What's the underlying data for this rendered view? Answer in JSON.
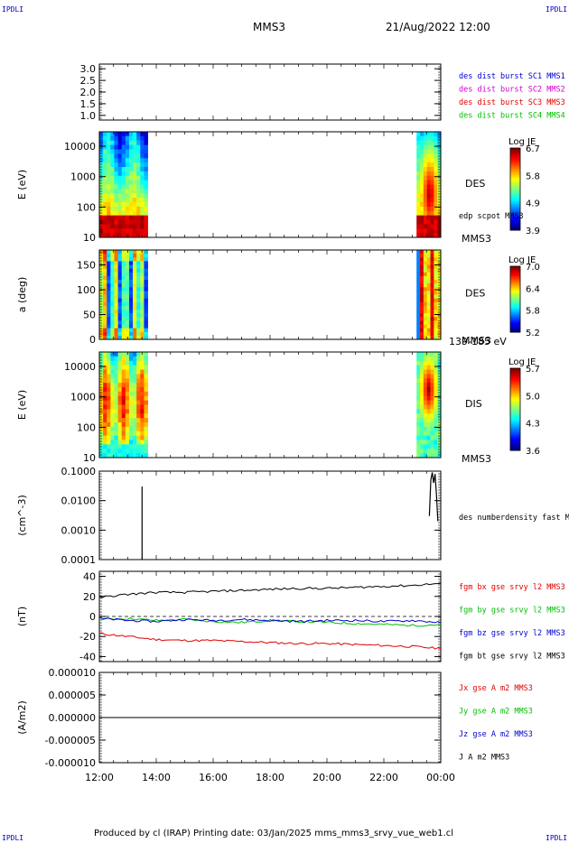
{
  "header": {
    "corner_tl": "IPDLI",
    "corner_tr": "IPDLI",
    "corner_bl": "IPDLI",
    "corner_br": "IPDLI",
    "spacecraft": "MMS3",
    "datetime": "21/Aug/2022 12:00"
  },
  "footer": {
    "text": "Produced by cl (IRAP)   Printing date: 03/Jan/2025   mms_mms3_srvy_vue_web1.cl"
  },
  "colors": {
    "blue": "#0000d0",
    "magenta": "#d000d0",
    "red": "#e00000",
    "green": "#00c000",
    "black": "#000000"
  },
  "chart_data": [
    {
      "type": "line",
      "panel": "sc-flags",
      "ylabel": "",
      "yticks": [
        "3.0",
        "2.5",
        "2.0",
        "1.5",
        "1.0"
      ],
      "ylim": [
        0.8,
        3.2
      ],
      "legend": [
        {
          "text": "des dist burst SC1 MMS1",
          "color": "blue"
        },
        {
          "text": "des dist burst SC2 MMS2",
          "color": "magenta"
        },
        {
          "text": "des dist burst SC3 MMS3",
          "color": "red"
        },
        {
          "text": "des dist burst SC4 MMS4",
          "color": "green"
        }
      ]
    },
    {
      "type": "heatmap",
      "panel": "des-energy",
      "ylabel": "E (eV)",
      "yscale": "log",
      "yticks": [
        "10000",
        "1000",
        "100",
        "10"
      ],
      "ylim": [
        10,
        30000
      ],
      "data_intervals_hours": [
        [
          12.0,
          13.7
        ],
        [
          23.15,
          24.0
        ]
      ],
      "label": "DES",
      "sublabel": "edp scpot MMS3",
      "spacecraft_label": "MMS3",
      "colorbar": {
        "title": "Log JE",
        "ticks": [
          "6.7",
          "5.8",
          "4.9",
          "3.9"
        ]
      }
    },
    {
      "type": "heatmap",
      "panel": "des-pitch",
      "ylabel": "a (deg)",
      "yticks": [
        "150",
        "100",
        "50",
        "0"
      ],
      "ylim": [
        0,
        180
      ],
      "data_intervals_hours": [
        [
          12.0,
          13.7
        ],
        [
          23.15,
          24.0
        ]
      ],
      "label": "DES",
      "spacecraft_label": "MMS3",
      "energy_label": "139-185 eV",
      "colorbar": {
        "title": "Log JE",
        "ticks": [
          "7.0",
          "6.4",
          "5.8",
          "5.2"
        ]
      }
    },
    {
      "type": "heatmap",
      "panel": "dis-energy",
      "ylabel": "E (eV)",
      "yscale": "log",
      "yticks": [
        "10000",
        "1000",
        "100",
        "10"
      ],
      "ylim": [
        10,
        30000
      ],
      "data_intervals_hours": [
        [
          12.0,
          13.7
        ],
        [
          23.15,
          24.0
        ]
      ],
      "label": "DIS",
      "spacecraft_label": "MMS3",
      "colorbar": {
        "title": "Log JE",
        "ticks": [
          "5.7",
          "5.0",
          "4.3",
          "3.6"
        ]
      }
    },
    {
      "type": "line",
      "panel": "density",
      "ylabel": "(cm^-3)",
      "yscale": "log",
      "yticks": [
        "0.1000",
        "0.0100",
        "0.0010",
        "0.0001"
      ],
      "ylim": [
        0.0001,
        0.1
      ],
      "legend": [
        {
          "text": "des numberdensity fast M",
          "color": "black"
        }
      ],
      "series": [
        {
          "name": "des numberdensity fast M",
          "segments": [
            {
              "x": [
                13.5,
                13.5
              ],
              "y": [
                0.0001,
                0.03
              ]
            },
            {
              "x": [
                23.6,
                23.65,
                23.7,
                23.75,
                23.8,
                23.85,
                23.9
              ],
              "y": [
                0.003,
                0.05,
                0.09,
                0.04,
                0.08,
                0.015,
                0.002
              ]
            }
          ]
        }
      ]
    },
    {
      "type": "line",
      "panel": "fgm",
      "ylabel": "(nT)",
      "yticks": [
        "40",
        "20",
        "0",
        "-20",
        "-40"
      ],
      "ylim": [
        -45,
        45
      ],
      "x": [
        12,
        13,
        14,
        15,
        16,
        17,
        18,
        19,
        20,
        21,
        22,
        23,
        24
      ],
      "series": [
        {
          "name": "fgm bx gse srvy l2 MMS3",
          "color": "red",
          "values": [
            -17,
            -20,
            -23,
            -24,
            -24,
            -25,
            -26,
            -27,
            -27,
            -28,
            -29,
            -30,
            -32
          ]
        },
        {
          "name": "fgm by gse srvy l2 MMS3",
          "color": "green",
          "values": [
            -3,
            -2,
            -4,
            -3,
            -5,
            -6,
            -4,
            -5,
            -6,
            -7,
            -8,
            -9,
            -8
          ]
        },
        {
          "name": "fgm bz gse srvy l2 MMS3",
          "color": "blue",
          "values": [
            -2,
            -4,
            -5,
            -3,
            -4,
            -3,
            -4,
            -5,
            -4,
            -4,
            -5,
            -4,
            -6
          ]
        },
        {
          "name": "fgm bt gse srvy l2 MMS3",
          "color": "black",
          "values": [
            19,
            22,
            24,
            24,
            25,
            26,
            27,
            28,
            28,
            29,
            30,
            31,
            33
          ]
        }
      ]
    },
    {
      "type": "line",
      "panel": "current",
      "ylabel": "(A/m2)",
      "yticks": [
        "0.000010",
        "0.000005",
        "0.000000",
        "-0.000005",
        "-0.000010"
      ],
      "ylim": [
        -1e-05,
        1e-05
      ],
      "xlabel": "",
      "xticks": [
        "12:00",
        "14:00",
        "16:00",
        "18:00",
        "20:00",
        "22:00",
        "00:00"
      ],
      "series": [
        {
          "name": "Jx gse A m2 MMS3",
          "color": "red"
        },
        {
          "name": "Jy gse A m2 MMS3",
          "color": "green"
        },
        {
          "name": "Jz gse A m2 MMS3",
          "color": "blue"
        },
        {
          "name": "J A m2 MMS3",
          "color": "black"
        }
      ],
      "values_flat": 0.0
    }
  ]
}
